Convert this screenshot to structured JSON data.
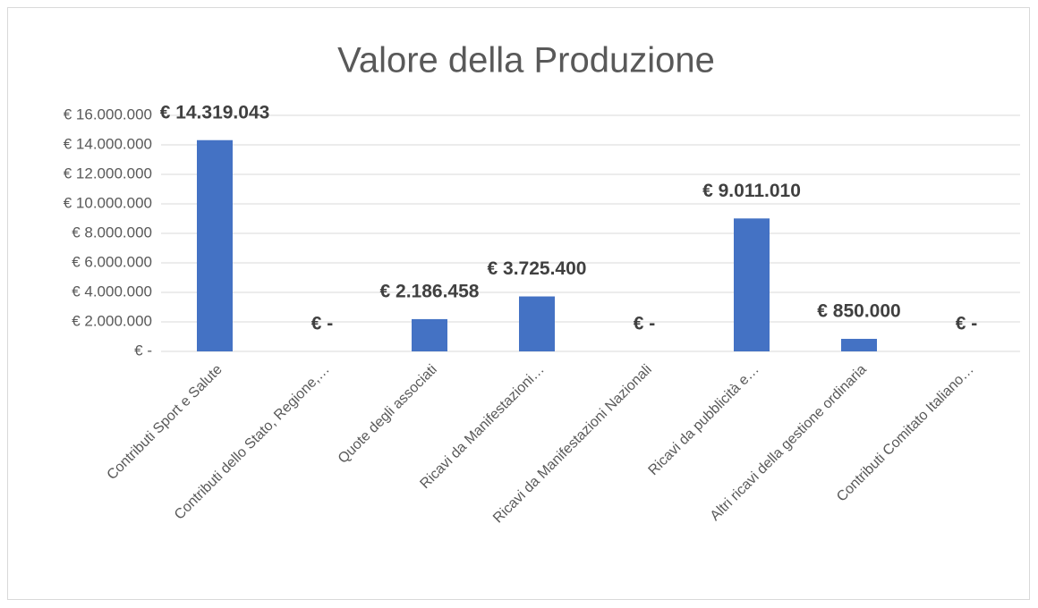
{
  "chart_data": {
    "type": "bar",
    "title": "Valore della Produzione",
    "categories": [
      "Contributi Sport e Salute",
      "Contributi dello Stato, Regione,…",
      "Quote degli associati",
      "Ricavi da Manifestazioni…",
      "Ricavi da Manifestazioni Nazionali",
      "Ricavi da pubblicità e…",
      "Altri ricavi della gestione ordinaria",
      "Contributi Comitato Italiano…"
    ],
    "values": [
      14319043,
      0,
      2186458,
      3725400,
      0,
      9011010,
      850000,
      0
    ],
    "value_labels": [
      "€ 14.319.043",
      "€ -",
      "€ 2.186.458",
      "€ 3.725.400",
      "€ -",
      "€ 9.011.010",
      "€ 850.000",
      "€ -"
    ],
    "color": "#4472c4",
    "ylim": [
      0,
      16000000
    ],
    "yticks": [
      {
        "value": 0,
        "label": "€ -"
      },
      {
        "value": 2000000,
        "label": "€ 2.000.000"
      },
      {
        "value": 4000000,
        "label": "€ 4.000.000"
      },
      {
        "value": 6000000,
        "label": "€ 6.000.000"
      },
      {
        "value": 8000000,
        "label": "€ 8.000.000"
      },
      {
        "value": 10000000,
        "label": "€ 10.000.000"
      },
      {
        "value": 12000000,
        "label": "€ 12.000.000"
      },
      {
        "value": 14000000,
        "label": "€ 14.000.000"
      },
      {
        "value": 16000000,
        "label": "€ 16.000.000"
      }
    ],
    "grid": true
  }
}
